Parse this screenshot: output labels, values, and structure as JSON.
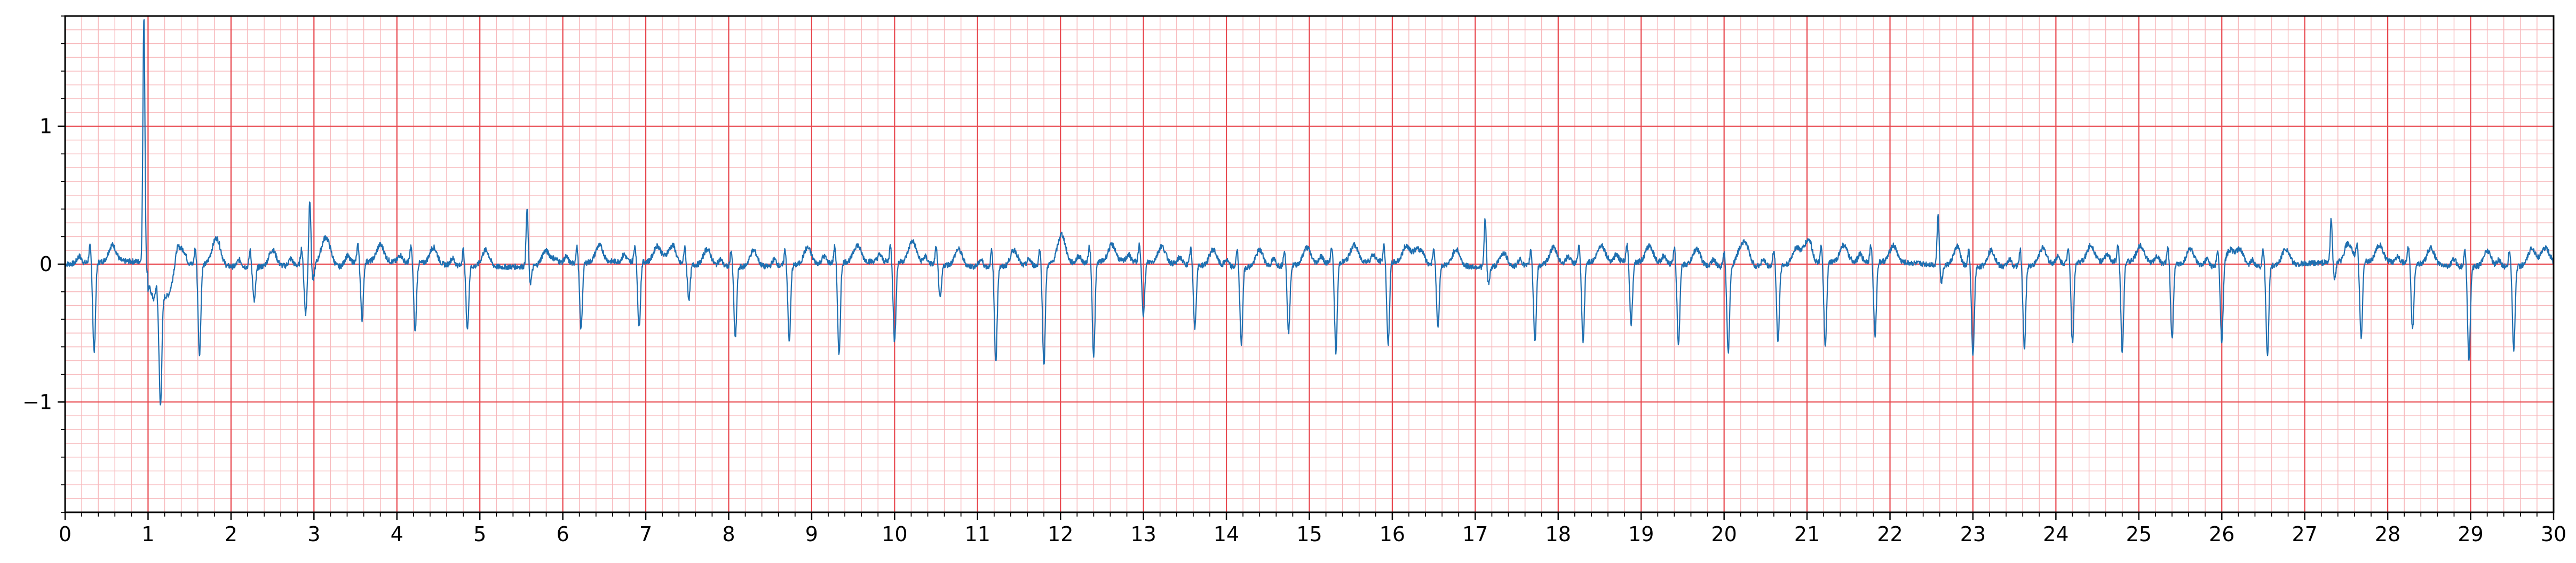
{
  "chart_data": {
    "type": "line",
    "title": "",
    "xlabel": "",
    "ylabel": "",
    "xlim": [
      0,
      30
    ],
    "ylim": [
      -1.8,
      1.8
    ],
    "grid": true,
    "grid_major_color": "#e8484f",
    "grid_minor_color": "#f7b9bc",
    "line_color": "#1f6fb0",
    "x_ticks": [
      0,
      1,
      2,
      3,
      4,
      5,
      6,
      7,
      8,
      9,
      10,
      11,
      12,
      13,
      14,
      15,
      16,
      17,
      18,
      19,
      20,
      21,
      22,
      23,
      24,
      25,
      26,
      27,
      28,
      29,
      30
    ],
    "x_tick_labels": [
      "0",
      "1",
      "2",
      "3",
      "4",
      "5",
      "6",
      "7",
      "8",
      "9",
      "10",
      "11",
      "12",
      "13",
      "14",
      "15",
      "16",
      "17",
      "18",
      "19",
      "20",
      "21",
      "22",
      "23",
      "24",
      "25",
      "26",
      "27",
      "28",
      "29",
      "30"
    ],
    "y_ticks": [
      -1,
      0,
      1
    ],
    "y_tick_labels": [
      "−1",
      "0",
      "1"
    ],
    "series": [
      {
        "beats": [
          [
            0.35,
            -0.65
          ],
          [
            0.95,
            1.75
          ],
          [
            1.15,
            -0.78
          ],
          [
            1.62,
            -0.65
          ],
          [
            2.28,
            -0.25
          ],
          [
            2.9,
            -0.35
          ],
          [
            2.95,
            0.48
          ],
          [
            3.58,
            -0.42
          ],
          [
            4.22,
            -0.5
          ],
          [
            4.85,
            -0.46
          ],
          [
            5.57,
            0.42
          ],
          [
            6.22,
            -0.48
          ],
          [
            6.92,
            -0.48
          ],
          [
            7.52,
            -0.25
          ],
          [
            8.08,
            -0.52
          ],
          [
            8.73,
            -0.55
          ],
          [
            9.33,
            -0.68
          ],
          [
            10.0,
            -0.58
          ],
          [
            10.55,
            -0.25
          ],
          [
            11.22,
            -0.68
          ],
          [
            11.8,
            -0.72
          ],
          [
            12.4,
            -0.68
          ],
          [
            13.0,
            -0.38
          ],
          [
            13.62,
            -0.45
          ],
          [
            14.18,
            -0.56
          ],
          [
            14.75,
            -0.48
          ],
          [
            15.32,
            -0.65
          ],
          [
            15.95,
            -0.6
          ],
          [
            16.55,
            -0.45
          ],
          [
            17.12,
            0.35
          ],
          [
            17.72,
            -0.55
          ],
          [
            18.3,
            -0.58
          ],
          [
            18.88,
            -0.45
          ],
          [
            19.45,
            -0.58
          ],
          [
            20.05,
            -0.62
          ],
          [
            20.65,
            -0.55
          ],
          [
            21.22,
            -0.62
          ],
          [
            21.82,
            -0.55
          ],
          [
            22.58,
            0.37
          ],
          [
            23.0,
            -0.65
          ],
          [
            23.62,
            -0.6
          ],
          [
            24.2,
            -0.58
          ],
          [
            24.8,
            -0.65
          ],
          [
            25.4,
            -0.55
          ],
          [
            26.0,
            -0.55
          ],
          [
            26.55,
            -0.65
          ],
          [
            27.32,
            0.32
          ],
          [
            27.68,
            -0.55
          ],
          [
            28.3,
            -0.48
          ],
          [
            28.98,
            -0.68
          ],
          [
            29.52,
            -0.6
          ]
        ],
        "t_waves": [
          [
            1.8,
            0.2
          ],
          [
            3.3,
            0.07
          ],
          [
            5.9,
            0.14
          ],
          [
            7.3,
            0.2
          ],
          [
            10.2,
            0.14
          ],
          [
            12.0,
            0.2
          ],
          [
            16.3,
            0.2
          ],
          [
            20.2,
            0.22
          ],
          [
            21.0,
            0.25
          ],
          [
            26.1,
            0.22
          ],
          [
            29.9,
            0.22
          ]
        ]
      }
    ]
  }
}
